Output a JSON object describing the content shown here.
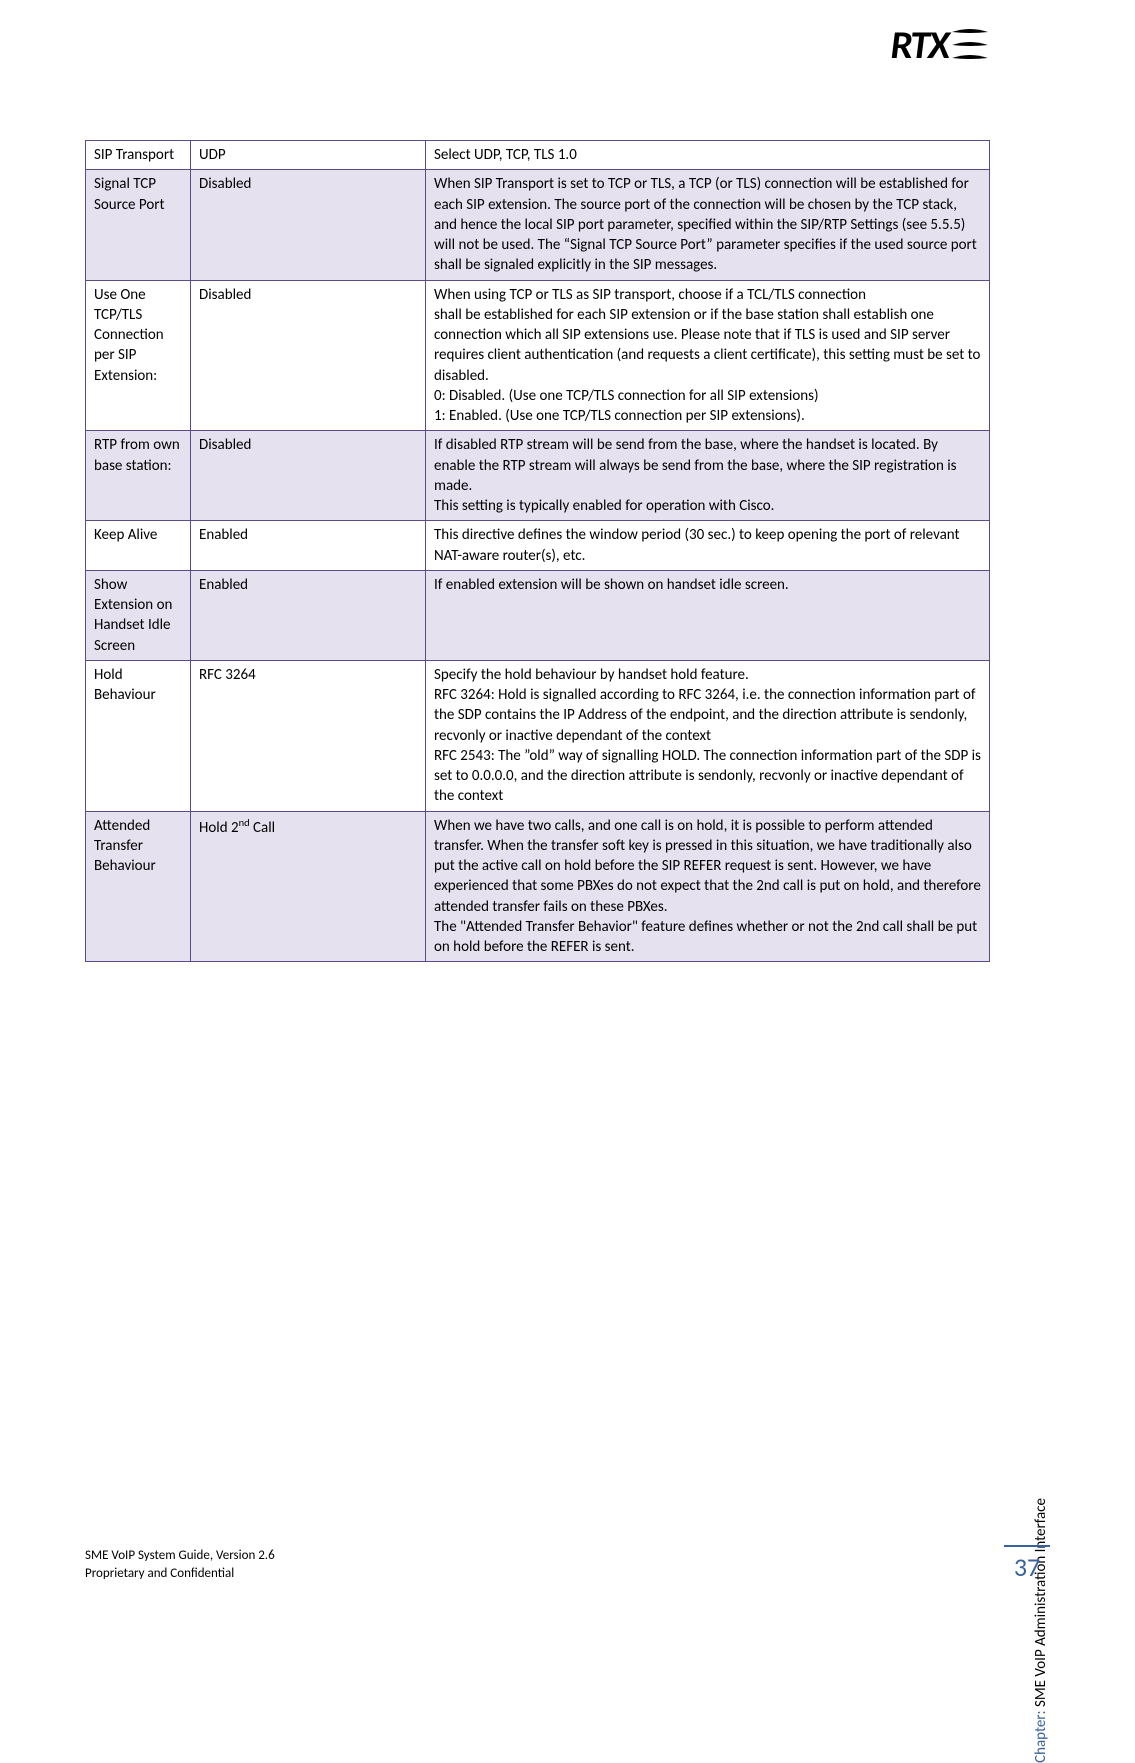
{
  "logo": {
    "text": "RTX"
  },
  "table": {
    "border_color": "#5b4a8a",
    "shaded_bg": "#e6e1ef",
    "rows": [
      {
        "shaded": false,
        "param": "SIP Transport",
        "value": "UDP",
        "desc": "Select UDP, TCP, TLS 1.0"
      },
      {
        "shaded": true,
        "param": "Signal TCP Source Port",
        "value": "Disabled",
        "desc": "When SIP Transport is set to TCP or TLS, a TCP (or TLS) connection will be established for each SIP extension. The source port of the connection will be chosen by the TCP stack, and hence the local SIP port parameter, specified within the SIP/RTP Settings (see 5.5.5) will not be used. The “Signal TCP Source Port” parameter specifies if the used source port shall be signaled explicitly in the SIP messages."
      },
      {
        "shaded": false,
        "param": "Use One TCP/TLS Connection per SIP Extension:",
        "value": "Disabled",
        "desc": "When using TCP or TLS as SIP transport, choose if a TCL/TLS connection\nshall be established for each SIP extension or if the base station shall establish one connection which all SIP extensions use. Please note that if TLS is used and SIP server requires client authentication (and requests a client certificate), this setting must be set to disabled.\n0: Disabled. (Use one TCP/TLS connection for all SIP extensions)\n1: Enabled. (Use one TCP/TLS connection per SIP extensions)."
      },
      {
        "shaded": true,
        "param": "RTP from own base station:",
        "value": "Disabled",
        "desc": "If disabled RTP stream will be send from the base, where the handset is located. By enable the RTP stream will always be send from the base, where the SIP registration is made.\nThis setting is typically enabled for operation with Cisco."
      },
      {
        "shaded": false,
        "param": "Keep Alive",
        "value": "Enabled",
        "desc": "This directive defines the window period (30 sec.) to keep opening the port of relevant NAT-aware router(s), etc."
      },
      {
        "shaded": true,
        "param": "Show Extension on Handset Idle Screen",
        "value": "Enabled",
        "desc": "If enabled extension will be shown on handset idle screen."
      },
      {
        "shaded": false,
        "param": "Hold Behaviour",
        "value": "RFC 3264",
        "desc": "Specify the hold behaviour by handset hold feature.\nRFC 3264: Hold is signalled according to RFC 3264, i.e. the connection information part of the SDP contains the IP Address of the endpoint, and the direction attribute is sendonly, recvonly or inactive dependant of the context\nRFC 2543: The ”old” way of signalling HOLD. The connection information part of the SDP is set to 0.0.0.0, and the direction attribute is sendonly, recvonly or inactive dependant of the context"
      },
      {
        "shaded": true,
        "param": "Attended Transfer Behaviour",
        "value_html": "Hold 2<sup>nd</sup> Call",
        "value": "Hold 2nd Call",
        "desc": "When we have two calls, and one call is on hold, it is possible to perform attended transfer. When the transfer soft key is pressed in this situation, we have traditionally also put the active call on hold before the SIP REFER request is sent. However, we have experienced that some PBXes do not expect that the 2nd call is put on hold, and therefore attended transfer fails on these PBXes.\nThe \"Attended Transfer Behavior\" feature defines whether or not the 2nd call shall be put on hold before the REFER is sent."
      }
    ]
  },
  "footer": {
    "line1": "SME VoIP System Guide, Version 2.6",
    "line2": "Proprietary and Confidential"
  },
  "side": {
    "label": "Chapter:",
    "text": "SME VoIP Administration Interface",
    "label_color": "#38629c"
  },
  "page_number": "37",
  "colors": {
    "accent_blue": "#38629c",
    "text": "#000000",
    "background": "#ffffff"
  }
}
